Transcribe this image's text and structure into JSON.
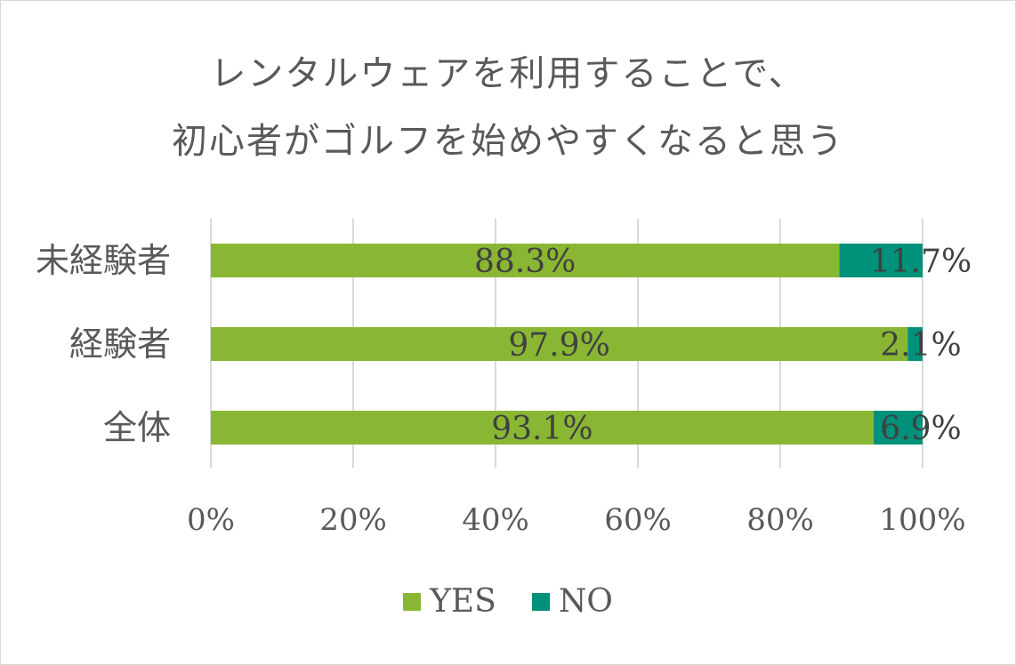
{
  "chart_data": {
    "type": "bar",
    "orientation": "horizontal",
    "stacked": true,
    "title": "レンタルウェアを利用することで、初心者がゴルフを始めやすくなると思う",
    "title_lines": [
      "レンタルウェアを利用することで、",
      "初心者がゴルフを始めやすくなると思う"
    ],
    "categories": [
      "未経験者",
      "経験者",
      "全体"
    ],
    "series": [
      {
        "name": "YES",
        "color": "#8ab733",
        "values": [
          88.3,
          97.9,
          93.1
        ],
        "labels": [
          "88.3%",
          "97.9%",
          "93.1%"
        ]
      },
      {
        "name": "NO",
        "color": "#00917a",
        "values": [
          11.7,
          2.1,
          6.9
        ],
        "labels": [
          "11.7%",
          "2.1%",
          "6.9%"
        ]
      }
    ],
    "xlim": [
      0,
      100
    ],
    "x_ticks": [
      0,
      20,
      40,
      60,
      80,
      100
    ],
    "x_tick_labels": [
      "0%",
      "20%",
      "40%",
      "60%",
      "80%",
      "100%"
    ],
    "grid": "vertical",
    "legend_position": "bottom"
  }
}
